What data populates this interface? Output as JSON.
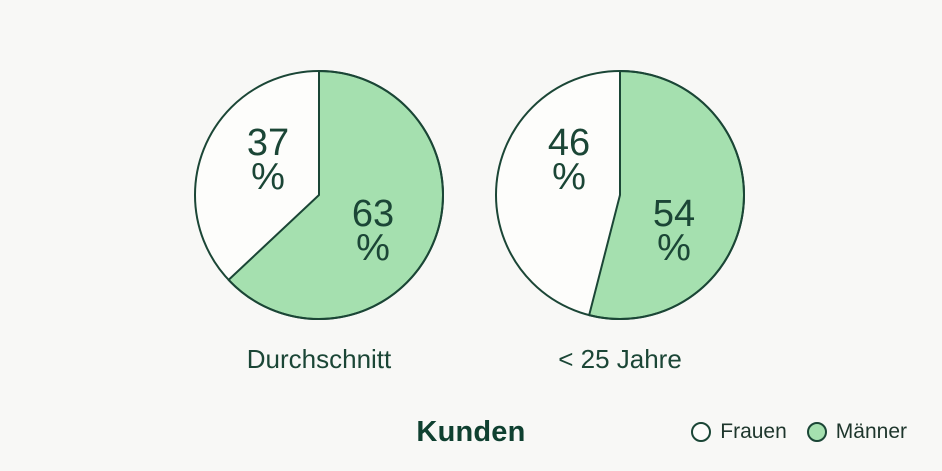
{
  "colors": {
    "background": "#f8f8f6",
    "outline": "#1b4636",
    "text_ink": "#1b4636",
    "title_ink": "#0f4030",
    "frauen_fill": "#fdfdfb",
    "maenner_fill": "#a5e0af"
  },
  "chart_data": {
    "type": "pie",
    "title": "Kunden",
    "unit": "%",
    "legend_position": "bottom-right",
    "direction": "clockwise",
    "start_angle_deg": 0,
    "charts": [
      {
        "title": "Durchschnitt",
        "slices": [
          {
            "label": "Frauen",
            "value": 37
          },
          {
            "label": "Männer",
            "value": 63
          }
        ]
      },
      {
        "title": "< 25 Jahre",
        "slices": [
          {
            "label": "Frauen",
            "value": 46
          },
          {
            "label": "Männer",
            "value": 54
          }
        ]
      }
    ]
  },
  "legend": {
    "items": [
      {
        "label": "Frauen",
        "color": "#fdfdfb"
      },
      {
        "label": "Männer",
        "color": "#a5e0af"
      }
    ]
  }
}
